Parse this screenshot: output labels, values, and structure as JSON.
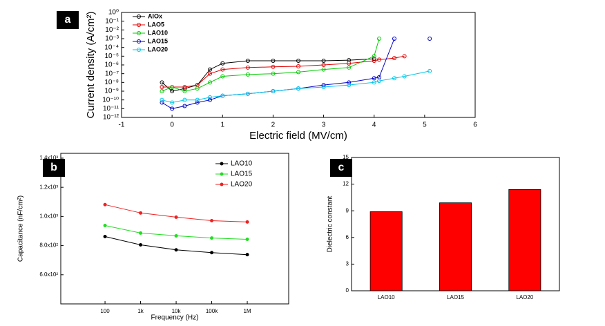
{
  "chart_data": [
    {
      "type": "line",
      "panel_label": "a",
      "x_label": "Electric field (MV/cm)",
      "y_label": "Current density (A/cm²)",
      "xlim": [
        -1,
        6
      ],
      "xticks": [
        -1,
        0,
        1,
        2,
        3,
        4,
        5,
        6
      ],
      "ylog": true,
      "ylim": [
        1e-12,
        1
      ],
      "yticks": [
        {
          "value": 1,
          "label": "10⁰"
        },
        {
          "value": 0.1,
          "label": "10⁻¹"
        },
        {
          "value": 0.01,
          "label": "10⁻²"
        },
        {
          "value": 0.001,
          "label": "10⁻³"
        },
        {
          "value": 0.0001,
          "label": "10⁻⁴"
        },
        {
          "value": 1e-05,
          "label": "10⁻⁵"
        },
        {
          "value": 1e-06,
          "label": "10⁻⁶"
        },
        {
          "value": 1e-07,
          "label": "10⁻⁷"
        },
        {
          "value": 1e-08,
          "label": "10⁻⁸"
        },
        {
          "value": 1e-09,
          "label": "10⁻⁹"
        },
        {
          "value": 1e-10,
          "label": "10⁻¹⁰"
        },
        {
          "value": 1e-11,
          "label": "10⁻¹¹"
        },
        {
          "value": 1e-12,
          "label": "10⁻¹²"
        }
      ],
      "marker": "open-circle",
      "legend": "upper left",
      "x": [
        -0.2,
        0,
        0.25,
        0.5,
        0.75,
        1,
        1.5,
        2,
        2.5,
        3,
        3.5,
        4,
        4.1,
        4.4,
        4.6,
        5.1
      ],
      "series": [
        {
          "name": "AlOx",
          "color": "#000000",
          "values": [
            1e-08,
            1e-09,
            2e-09,
            5e-09,
            3e-07,
            1.5e-06,
            3e-06,
            3e-06,
            3e-06,
            3e-06,
            3.5e-06,
            5e-06,
            null,
            null,
            null,
            null
          ]
        },
        {
          "name": "LAO5",
          "color": "#e00000",
          "values": [
            3e-09,
            3e-09,
            3e-09,
            5e-09,
            1e-07,
            3e-07,
            5e-07,
            6e-07,
            7e-07,
            1e-06,
            1.5e-06,
            3e-06,
            4e-06,
            6e-06,
            1e-05,
            null
          ]
        },
        {
          "name": "LAO10",
          "color": "#00cc00",
          "values": [
            1e-09,
            3e-09,
            1e-09,
            2e-09,
            1e-08,
            5e-08,
            8e-08,
            1e-07,
            1.5e-07,
            3e-07,
            5e-07,
            1e-05,
            0.001,
            null,
            null,
            null
          ]
        },
        {
          "name": "LAO15",
          "color": "#0000cc",
          "values": [
            5e-11,
            1e-11,
            2e-11,
            5e-11,
            1e-10,
            3e-10,
            5e-10,
            1e-09,
            2e-09,
            5e-09,
            1e-08,
            3e-08,
            4e-08,
            0.001,
            null,
            0.001
          ]
        },
        {
          "name": "LAO20",
          "color": "#00c8e8",
          "values": [
            1e-10,
            5e-11,
            1e-10,
            1e-10,
            2e-10,
            3e-10,
            5e-10,
            1e-09,
            2e-09,
            3e-09,
            5e-09,
            1e-08,
            1.5e-08,
            3e-08,
            5e-08,
            2e-07
          ]
        }
      ]
    },
    {
      "type": "line",
      "panel_label": "b",
      "x_label": "Frequency (Hz)",
      "y_label": "Capacitance (nF/cm²)",
      "xlog": true,
      "xlim": [
        5.7,
        14600000
      ],
      "xticks": [
        100,
        {
          "value": 1000,
          "label": "1k"
        },
        {
          "value": 10000,
          "label": "10k"
        },
        {
          "value": 100000,
          "label": "100k"
        },
        {
          "value": 1000000,
          "label": "1M"
        }
      ],
      "ylim": [
        400,
        1433
      ],
      "yticks": [
        {
          "value": 600,
          "label": "6.0x10²"
        },
        {
          "value": 800,
          "label": "8.0x10²"
        },
        {
          "value": 1000,
          "label": "1.0x10³"
        },
        {
          "value": 1200,
          "label": "1.2x10³"
        },
        {
          "value": 1400,
          "label": "1.4x10³"
        }
      ],
      "marker": "filled-circle",
      "legend": "upper right",
      "x": [
        100,
        1000,
        10000,
        100000,
        1000000
      ],
      "series": [
        {
          "name": "LAO10",
          "color": "#000000",
          "values": [
            862,
            805,
            771,
            752,
            738
          ]
        },
        {
          "name": "LAO15",
          "color": "#22dd22",
          "values": [
            938,
            886,
            867,
            852,
            843
          ]
        },
        {
          "name": "LAO20",
          "color": "#ee2222",
          "values": [
            1081,
            1024,
            995,
            971,
            962
          ]
        }
      ]
    },
    {
      "type": "bar",
      "panel_label": "c",
      "y_label": "Dielectric constant",
      "categories": [
        "LAO10",
        "LAO15",
        "LAO20"
      ],
      "values": [
        8.9,
        9.9,
        11.4
      ],
      "color": "#ff0000",
      "ylim": [
        0,
        15
      ],
      "yticks": [
        0,
        3,
        6,
        9,
        12,
        15
      ]
    }
  ]
}
